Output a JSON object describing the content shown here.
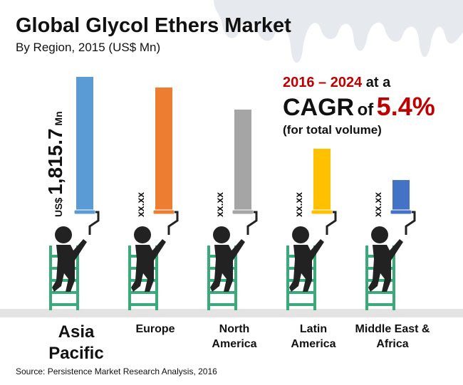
{
  "chart_data": {
    "type": "bar",
    "title": "Global Glycol Ethers Market",
    "subtitle": "By Region, 2015 (US$ Mn)",
    "categories": [
      "Asia Pacific",
      "Europe",
      "North America",
      "Latin America",
      "Middle East & Africa"
    ],
    "values": [
      1815.7,
      1672,
      1374,
      845,
      423
    ],
    "value_labels": [
      "1,815.7",
      "xx.xx",
      "xx.xx",
      "xx.xx",
      "xx.xx"
    ],
    "value_label_prefix": "US$",
    "value_label_suffix": "Mn",
    "colors": [
      "#5b9bd5",
      "#ed7d31",
      "#a5a5a5",
      "#ffc000",
      "#4472c4"
    ],
    "annotation": {
      "period": "2016 – 2024",
      "period_tail": "at a",
      "cagr": "CAGR",
      "of": "of",
      "rate": "5.4%",
      "note": "(for total volume)"
    },
    "source": "Source: Persistence Market Research Analysis, 2016"
  }
}
